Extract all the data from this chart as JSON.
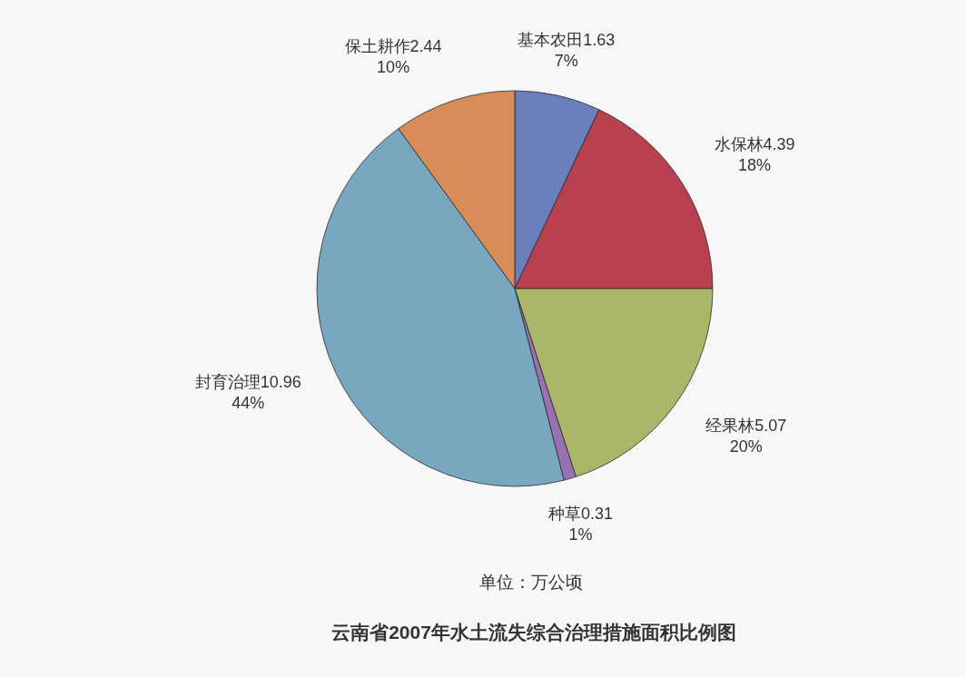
{
  "chart_data": {
    "type": "pie",
    "title": "云南省2007年水土流失综合治理措施面积比例图",
    "annotations": [
      "单位：万公顷"
    ],
    "categories": [
      "基本农田1.63",
      "水保林4.39",
      "经果林5.07",
      "种草0.31",
      "封育治理10.96",
      "保土耕作2.44"
    ],
    "values": [
      7,
      18,
      20,
      1,
      44,
      10
    ],
    "colors": [
      "#6b7fbc",
      "#b8404f",
      "#a8b868",
      "#9a70b0",
      "#78a8c0",
      "#d88c58"
    ],
    "value_labels": [
      "7%",
      "18%",
      "20%",
      "1%",
      "44%",
      "10%"
    ]
  }
}
